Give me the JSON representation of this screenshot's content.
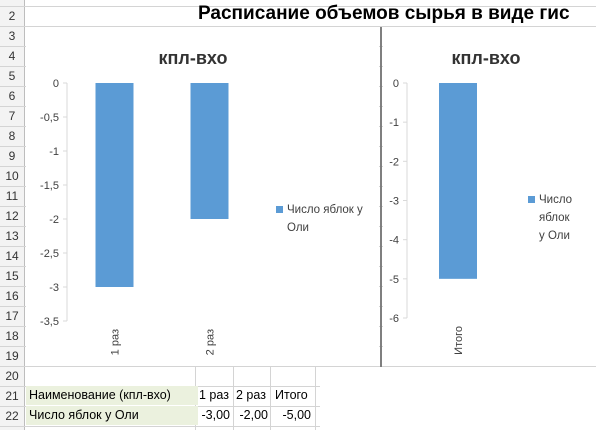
{
  "sheet": {
    "title": "Расписание объемов сырья в виде гис",
    "row_numbers": [
      "1",
      "2",
      "3",
      "4",
      "5",
      "6",
      "7",
      "8",
      "9",
      "10",
      "11",
      "12",
      "13",
      "14",
      "15",
      "16",
      "17",
      "18",
      "19",
      "20",
      "21",
      "22"
    ]
  },
  "table": {
    "header": [
      "Наименование (кпл-вхо)",
      "1 раз",
      "2 раз",
      "Итого"
    ],
    "row": [
      "Число яблок у Оли",
      "-3,00",
      "-2,00",
      "-5,00"
    ]
  },
  "chart_data": [
    {
      "type": "bar",
      "title": "кпл-вхо",
      "categories": [
        "1 раз",
        "2 раз"
      ],
      "series": [
        {
          "name": "Число яблок у Оли",
          "values": [
            -3,
            -2
          ]
        }
      ],
      "ylim": [
        -3.5,
        0
      ],
      "yticks": [
        "0",
        "-0,5",
        "-1",
        "-1,5",
        "-2",
        "-2,5",
        "-3",
        "-3,5"
      ],
      "legend": "right",
      "grid": false,
      "color": "#5b9bd5"
    },
    {
      "type": "bar",
      "title": "кпл-вхо",
      "categories": [
        "Итого"
      ],
      "series": [
        {
          "name": "Число яблок у Оли",
          "values": [
            -5
          ]
        }
      ],
      "ylim": [
        -6,
        0
      ],
      "yticks": [
        "0",
        "-1",
        "-2",
        "-3",
        "-4",
        "-5",
        "-6"
      ],
      "legend": "right",
      "grid": false,
      "color": "#5b9bd5"
    }
  ]
}
